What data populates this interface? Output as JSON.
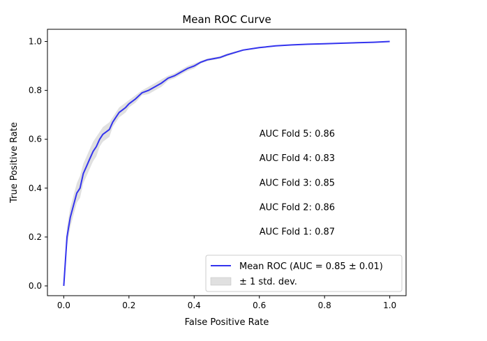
{
  "chart_data": {
    "type": "line",
    "title": "Mean ROC Curve",
    "xlabel": "False Positive Rate",
    "ylabel": "True Positive Rate",
    "xlim": [
      -0.05,
      1.05
    ],
    "ylim": [
      -0.04,
      1.05
    ],
    "xticks": [
      0.0,
      0.2,
      0.4,
      0.6,
      0.8,
      1.0
    ],
    "yticks": [
      0.0,
      0.2,
      0.4,
      0.6,
      0.8,
      1.0
    ],
    "xtick_labels": [
      "0.0",
      "0.2",
      "0.4",
      "0.6",
      "0.8",
      "1.0"
    ],
    "ytick_labels": [
      "0.0",
      "0.2",
      "0.4",
      "0.6",
      "0.8",
      "1.0"
    ],
    "grid": false,
    "legend_position": "lower-right",
    "series": [
      {
        "name": "Mean ROC (AUC = 0.85 ± 0.01)",
        "color": "#3333ee",
        "x": [
          0.0,
          0.01,
          0.02,
          0.03,
          0.04,
          0.05,
          0.06,
          0.07,
          0.08,
          0.09,
          0.1,
          0.11,
          0.12,
          0.13,
          0.14,
          0.15,
          0.16,
          0.17,
          0.18,
          0.19,
          0.2,
          0.22,
          0.24,
          0.26,
          0.28,
          0.3,
          0.32,
          0.34,
          0.36,
          0.38,
          0.4,
          0.42,
          0.44,
          0.46,
          0.48,
          0.5,
          0.55,
          0.6,
          0.65,
          0.7,
          0.75,
          0.8,
          0.85,
          0.9,
          0.95,
          1.0
        ],
        "y": [
          0.0,
          0.2,
          0.28,
          0.33,
          0.38,
          0.4,
          0.46,
          0.49,
          0.52,
          0.55,
          0.57,
          0.6,
          0.62,
          0.63,
          0.64,
          0.67,
          0.69,
          0.71,
          0.72,
          0.73,
          0.745,
          0.765,
          0.79,
          0.8,
          0.815,
          0.83,
          0.85,
          0.86,
          0.875,
          0.89,
          0.9,
          0.915,
          0.925,
          0.93,
          0.935,
          0.945,
          0.965,
          0.975,
          0.982,
          0.986,
          0.989,
          0.991,
          0.993,
          0.995,
          0.997,
          1.0
        ]
      }
    ],
    "std_band": {
      "name": "± 1 std. dev.",
      "color": "#cccccc",
      "upper": [
        0.0,
        0.24,
        0.32,
        0.37,
        0.42,
        0.45,
        0.5,
        0.53,
        0.56,
        0.59,
        0.61,
        0.63,
        0.65,
        0.66,
        0.67,
        0.69,
        0.71,
        0.73,
        0.74,
        0.75,
        0.76,
        0.78,
        0.8,
        0.815,
        0.83,
        0.845,
        0.86,
        0.87,
        0.885,
        0.9,
        0.91,
        0.92,
        0.93,
        0.935,
        0.94,
        0.95,
        0.968,
        0.978,
        0.984,
        0.988,
        0.991,
        0.993,
        0.995,
        0.997,
        0.999,
        1.0
      ],
      "lower": [
        0.0,
        0.16,
        0.24,
        0.29,
        0.34,
        0.36,
        0.42,
        0.45,
        0.48,
        0.51,
        0.53,
        0.57,
        0.59,
        0.6,
        0.61,
        0.65,
        0.67,
        0.69,
        0.7,
        0.71,
        0.73,
        0.75,
        0.78,
        0.785,
        0.8,
        0.815,
        0.84,
        0.85,
        0.865,
        0.88,
        0.89,
        0.91,
        0.92,
        0.925,
        0.93,
        0.94,
        0.962,
        0.972,
        0.98,
        0.984,
        0.987,
        0.989,
        0.991,
        0.993,
        0.995,
        1.0
      ]
    },
    "annotations": [
      {
        "text": "AUC Fold 5: 0.86",
        "x": 0.6,
        "y": 0.61
      },
      {
        "text": "AUC Fold 4: 0.83",
        "x": 0.6,
        "y": 0.51
      },
      {
        "text": "AUC Fold 3: 0.85",
        "x": 0.6,
        "y": 0.41
      },
      {
        "text": "AUC Fold 2: 0.86",
        "x": 0.6,
        "y": 0.31
      },
      {
        "text": "AUC Fold 1: 0.87",
        "x": 0.6,
        "y": 0.21
      }
    ]
  }
}
